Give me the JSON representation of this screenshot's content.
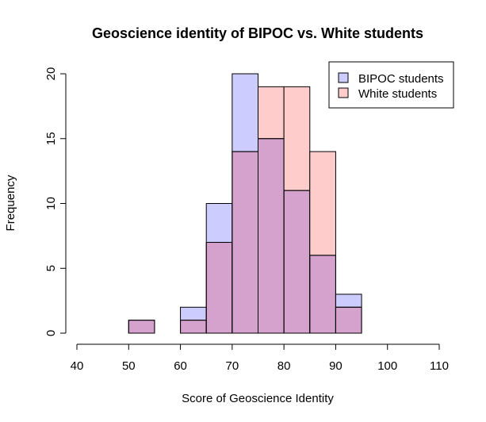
{
  "chart_data": {
    "type": "bar",
    "title": "Geoscience identity of BIPOC vs. White students",
    "xlabel": "Score of Geoscience Identity",
    "ylabel": "Frequency",
    "xlim": [
      40,
      110
    ],
    "ylim": [
      0,
      20
    ],
    "x_ticks": [
      "40",
      "50",
      "60",
      "70",
      "80",
      "90",
      "100",
      "110"
    ],
    "y_ticks": [
      "0",
      "5",
      "10",
      "15",
      "20"
    ],
    "bins": [
      [
        50,
        55
      ],
      [
        55,
        60
      ],
      [
        60,
        65
      ],
      [
        65,
        70
      ],
      [
        70,
        75
      ],
      [
        75,
        80
      ],
      [
        80,
        85
      ],
      [
        85,
        90
      ],
      [
        90,
        95
      ]
    ],
    "series": [
      {
        "name": "BIPOC students",
        "color": "#ccccff",
        "values": [
          1,
          0,
          2,
          10,
          20,
          15,
          11,
          6,
          3
        ]
      },
      {
        "name": "White students",
        "color": "#ffcccc",
        "values": [
          1,
          0,
          1,
          7,
          14,
          19,
          19,
          14,
          2
        ]
      }
    ],
    "overlap_color": "#d5a2ce",
    "legend_position": "top-right",
    "grid": false
  }
}
